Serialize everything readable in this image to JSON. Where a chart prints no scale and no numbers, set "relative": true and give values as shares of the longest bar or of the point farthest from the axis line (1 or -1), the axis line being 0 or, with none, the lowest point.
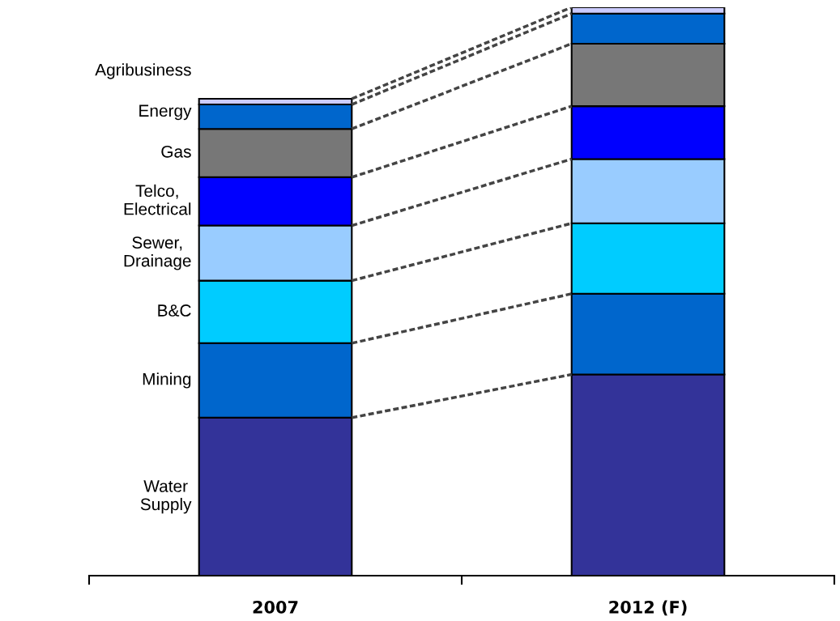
{
  "chart_data": {
    "type": "bar",
    "stacked": true,
    "relative": true,
    "categories": [
      "2007",
      "2012 (F)"
    ],
    "series": [
      {
        "name": "Water\nSupply",
        "color": "#333399",
        "values": [
          0.278,
          0.354
        ]
      },
      {
        "name": "Mining",
        "color": "#0066cc",
        "values": [
          0.131,
          0.142
        ]
      },
      {
        "name": "B&C",
        "color": "#00ccff",
        "values": [
          0.11,
          0.124
        ]
      },
      {
        "name": "Sewer,\nDrainage",
        "color": "#99ccff",
        "values": [
          0.097,
          0.113
        ]
      },
      {
        "name": "Telco,\nElectrical",
        "color": "#0000ff",
        "values": [
          0.085,
          0.093
        ]
      },
      {
        "name": "Gas",
        "color": "#777777",
        "values": [
          0.085,
          0.11
        ]
      },
      {
        "name": "Energy",
        "color": "#0066cc",
        "values": [
          0.043,
          0.053
        ]
      },
      {
        "name": "Agribusiness",
        "color": "#ccccff",
        "values": [
          0.01,
          0.011
        ]
      }
    ]
  }
}
